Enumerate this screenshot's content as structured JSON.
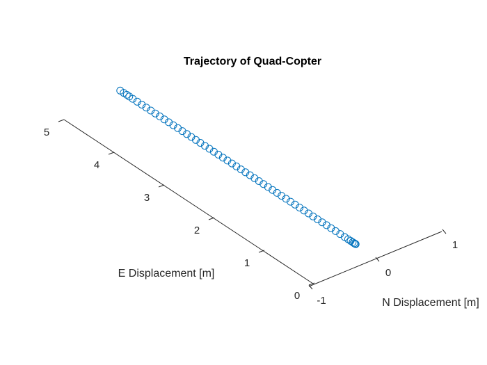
{
  "chart_data": {
    "type": "scatter",
    "title": "Trajectory of Quad-Copter",
    "xlabel": "N Displacement [m]",
    "ylabel": "E Displacement [m]",
    "zlabel": "",
    "xlim": [
      -1,
      1
    ],
    "ylim": [
      0,
      5
    ],
    "xticks": [
      "-1",
      "0",
      "1"
    ],
    "yticks": [
      "0",
      "1",
      "2",
      "3",
      "4",
      "5"
    ],
    "grid": false,
    "marker": "circle",
    "color": "#0072BD",
    "series": [
      {
        "x": [
          0,
          0,
          0,
          0,
          0,
          0,
          0,
          0,
          0,
          0,
          0,
          0,
          0,
          0,
          0,
          0,
          0,
          0,
          0,
          0,
          0,
          0,
          0,
          0,
          0,
          0,
          0,
          0,
          0,
          0,
          0,
          0,
          0,
          0,
          0,
          0,
          0,
          0,
          0,
          0,
          0,
          0,
          0,
          0,
          0,
          0,
          0,
          0,
          0,
          0,
          0,
          0,
          0,
          0,
          0,
          0,
          0,
          0
        ],
        "y": [
          5.1,
          5.03,
          4.97,
          4.92,
          4.85,
          4.76,
          4.67,
          4.58,
          4.49,
          4.4,
          4.31,
          4.22,
          4.13,
          4.04,
          3.95,
          3.86,
          3.77,
          3.68,
          3.59,
          3.5,
          3.41,
          3.32,
          3.23,
          3.14,
          3.05,
          2.96,
          2.87,
          2.78,
          2.69,
          2.6,
          2.51,
          2.42,
          2.33,
          2.24,
          2.15,
          2.06,
          1.97,
          1.88,
          1.79,
          1.7,
          1.61,
          1.52,
          1.43,
          1.34,
          1.25,
          1.16,
          1.07,
          0.98,
          0.89,
          0.8,
          0.71,
          0.62,
          0.55,
          0.5,
          0.46,
          0.43,
          0.41,
          0.4
        ]
      }
    ]
  }
}
